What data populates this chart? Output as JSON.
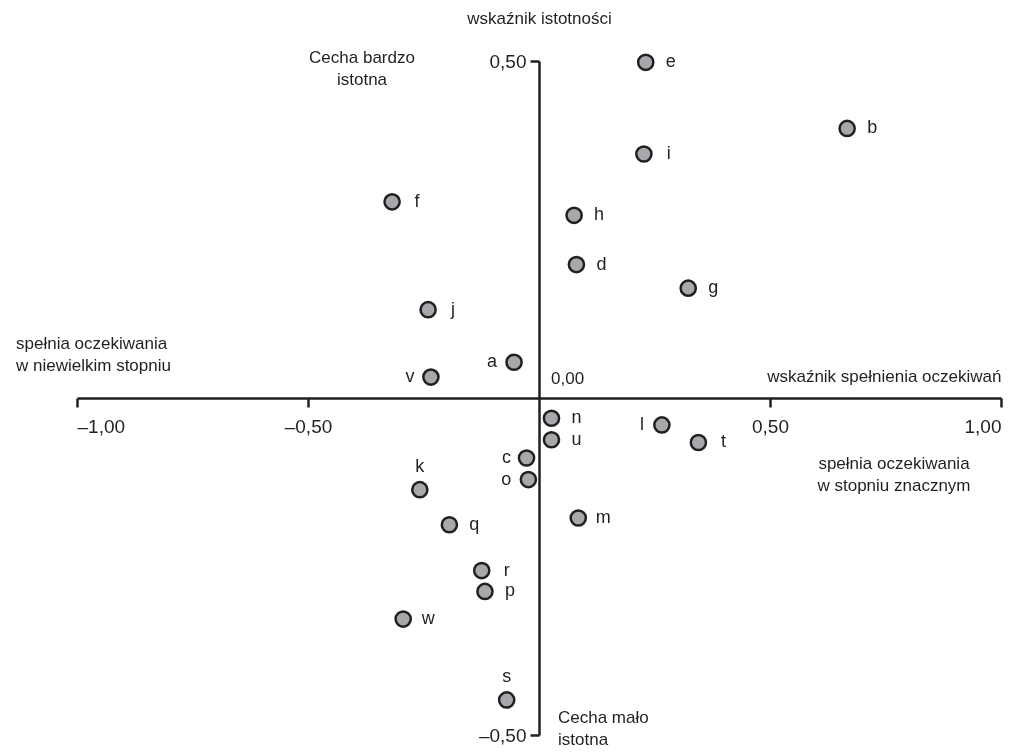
{
  "chart_data": {
    "type": "scatter",
    "xlabel": "wskaźnik spełnienia oczekiwań",
    "ylabel": "wskaźnik istotności",
    "xlim": [
      -1,
      1
    ],
    "ylim": [
      -0.5,
      0.5
    ],
    "xticks": [
      {
        "value": -1,
        "label": "–1,00"
      },
      {
        "value": -0.5,
        "label": "–0,50"
      },
      {
        "value": 0.5,
        "label": "0,50"
      },
      {
        "value": 1,
        "label": "1,00"
      }
    ],
    "yticks": [
      {
        "value": -0.5,
        "label": "–0,50"
      },
      {
        "value": 0.5,
        "label": "0,50"
      }
    ],
    "marker": "circle",
    "legend": false,
    "grid": false,
    "annotations": [
      "Cecha bardzo\nistotna",
      "Cecha mało\nistotna",
      "spełnia oczekiwania\nw niewielkim stopniu",
      "spełnia oczekiwania\nw stopniu znacznym",
      "0,00"
    ],
    "series": [
      {
        "name": "a",
        "color": "#a6a8ab",
        "x": [
          -0.054
        ],
        "values": [
          0.053
        ]
      },
      {
        "name": "b",
        "color": "#a6a8ab",
        "x": [
          0.667
        ],
        "values": [
          0.4
        ]
      },
      {
        "name": "c",
        "color": "#a6a8ab",
        "x": [
          -0.027
        ],
        "values": [
          -0.089
        ]
      },
      {
        "name": "d",
        "color": "#a6a8ab",
        "x": [
          0.081
        ],
        "values": [
          0.198
        ]
      },
      {
        "name": "e",
        "color": "#a6a8ab",
        "x": [
          0.231
        ],
        "values": [
          0.498
        ]
      },
      {
        "name": "f",
        "color": "#a6a8ab",
        "x": [
          -0.318
        ],
        "values": [
          0.291
        ]
      },
      {
        "name": "g",
        "color": "#a6a8ab",
        "x": [
          0.323
        ],
        "values": [
          0.163
        ]
      },
      {
        "name": "h",
        "color": "#a6a8ab",
        "x": [
          0.076
        ],
        "values": [
          0.271
        ]
      },
      {
        "name": "i",
        "color": "#a6a8ab",
        "x": [
          0.227
        ],
        "values": [
          0.362
        ]
      },
      {
        "name": "j",
        "color": "#a6a8ab",
        "x": [
          -0.24
        ],
        "values": [
          0.131
        ]
      },
      {
        "name": "k",
        "color": "#a6a8ab",
        "x": [
          -0.258
        ],
        "values": [
          -0.136
        ]
      },
      {
        "name": "l",
        "color": "#a6a8ab",
        "x": [
          0.266
        ],
        "values": [
          -0.04
        ]
      },
      {
        "name": "m",
        "color": "#a6a8ab",
        "x": [
          0.085
        ],
        "values": [
          -0.178
        ]
      },
      {
        "name": "n",
        "color": "#a6a8ab",
        "x": [
          0.027
        ],
        "values": [
          -0.03
        ]
      },
      {
        "name": "o",
        "color": "#a6a8ab",
        "x": [
          -0.023
        ],
        "values": [
          -0.121
        ]
      },
      {
        "name": "p",
        "color": "#a6a8ab",
        "x": [
          -0.117
        ],
        "values": [
          -0.287
        ]
      },
      {
        "name": "q",
        "color": "#a6a8ab",
        "x": [
          -0.194
        ],
        "values": [
          -0.188
        ]
      },
      {
        "name": "r",
        "color": "#a6a8ab",
        "x": [
          -0.124
        ],
        "values": [
          -0.256
        ]
      },
      {
        "name": "s",
        "color": "#a6a8ab",
        "x": [
          -0.07
        ],
        "values": [
          -0.448
        ]
      },
      {
        "name": "t",
        "color": "#a6a8ab",
        "x": [
          0.345
        ],
        "values": [
          -0.066
        ]
      },
      {
        "name": "u",
        "color": "#a6a8ab",
        "x": [
          0.027
        ],
        "values": [
          -0.062
        ]
      },
      {
        "name": "v",
        "color": "#a6a8ab",
        "x": [
          -0.234
        ],
        "values": [
          0.031
        ]
      },
      {
        "name": "w",
        "color": "#a6a8ab",
        "x": [
          -0.294
        ],
        "values": [
          -0.328
        ]
      }
    ]
  }
}
